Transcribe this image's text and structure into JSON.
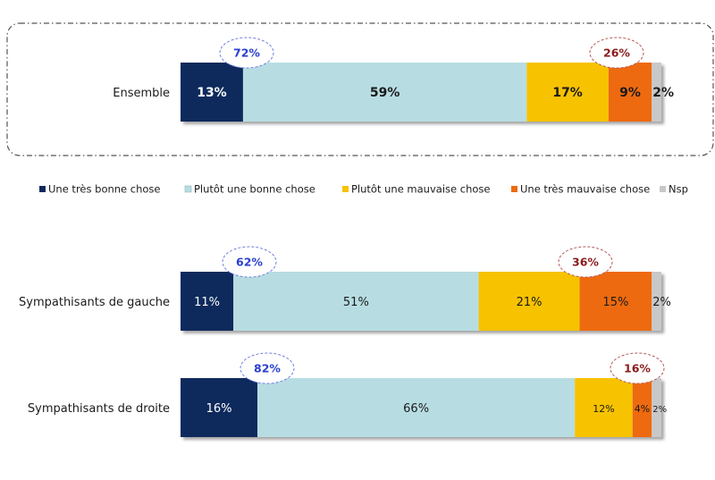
{
  "chart_data": {
    "type": "bar",
    "orientation": "horizontal",
    "stacked": true,
    "xlim": [
      0,
      100
    ],
    "unit": "%",
    "grid": false,
    "legend_placement": "between-panels",
    "series": [
      {
        "name": "Une très bonne chose",
        "color": "#0e2a5c"
      },
      {
        "name": "Plutôt une bonne chose",
        "color": "#b7dde3"
      },
      {
        "name": "Plutôt une mauvaise chose",
        "color": "#f7c200"
      },
      {
        "name": "Une très mauvaise chose",
        "color": "#ee6a10"
      },
      {
        "name": "Nsp",
        "color": "#c8c8c8"
      }
    ],
    "categories": [
      {
        "label": "Ensemble",
        "values": [
          13,
          59,
          17,
          9,
          2
        ],
        "value_labels": [
          "13%",
          "59%",
          "17%",
          "9%",
          "2%"
        ],
        "total_positive": "72%",
        "total_negative": "26%"
      },
      {
        "label": "Sympathisants de gauche",
        "values": [
          11,
          51,
          21,
          15,
          2
        ],
        "value_labels": [
          "11%",
          "51%",
          "21%",
          "15%",
          "2%"
        ],
        "total_positive": "62%",
        "total_negative": "36%"
      },
      {
        "label": "Sympathisants de droite",
        "values": [
          16,
          66,
          12,
          4,
          2
        ],
        "value_labels": [
          "16%",
          "66%",
          "12%",
          "4%",
          "2%"
        ],
        "total_positive": "82%",
        "total_negative": "16%"
      }
    ]
  },
  "colors": {
    "positive_total": "#2a3fd0",
    "negative_total": "#8a1c1c",
    "ellipse_positive_border": "#6f7fe0",
    "ellipse_negative_border": "#b45a5a",
    "frame_border": "#555555"
  }
}
